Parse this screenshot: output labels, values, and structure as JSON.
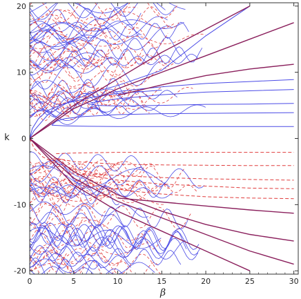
{
  "chart_data": {
    "type": "line",
    "title": "",
    "xlabel": "β",
    "ylabel": "k",
    "xlim": [
      0,
      30.5
    ],
    "ylim": [
      -20.5,
      20.5
    ],
    "x_ticks": [
      0,
      5,
      10,
      15,
      20,
      25,
      30
    ],
    "y_ticks": [
      -20,
      -10,
      0,
      10,
      20
    ],
    "grid": false,
    "legend": "none",
    "colors": {
      "blue": "#4a4ae6",
      "red": "#e03c3c",
      "purple": "#8a1f5c",
      "frame": "#333333"
    },
    "series": [
      {
        "style": "solid-blue",
        "lines": [
          {
            "x": [
              2.5,
              4,
              6,
              10,
              15,
              20,
              25,
              30
            ],
            "y": [
              2.0,
              1.9,
              1.85,
              1.8,
              1.8,
              1.8,
              1.8,
              1.8
            ]
          },
          {
            "x": [
              2.5,
              3,
              4,
              6,
              10,
              15,
              20,
              25,
              30
            ],
            "y": [
              2.0,
              2.6,
              3.0,
              3.3,
              3.6,
              3.75,
              3.8,
              3.85,
              3.9
            ]
          },
          {
            "x": [
              6.5,
              7.5,
              10,
              15,
              20,
              25,
              30
            ],
            "y": [
              5.3,
              5.0,
              4.9,
              5.0,
              5.15,
              5.2,
              5.3
            ]
          },
          {
            "x": [
              7,
              10,
              15,
              20,
              25,
              30
            ],
            "y": [
              5.4,
              6.0,
              6.6,
              7.0,
              7.2,
              7.4
            ]
          },
          {
            "x": [
              9.5,
              12,
              15,
              20,
              25,
              30
            ],
            "y": [
              7.0,
              7.4,
              7.8,
              8.3,
              8.6,
              8.9
            ]
          },
          {
            "x": [
              0,
              0.3,
              1,
              2,
              4,
              7,
              10,
              15
            ],
            "y": [
              0,
              1.5,
              3.0,
              4.2,
              5.3,
              6.2,
              6.8,
              7.3
            ]
          },
          {
            "x": [
              0,
              0.5,
              2,
              4,
              7,
              10,
              15,
              20,
              25
            ],
            "y": [
              0,
              1.2,
              3.5,
              5.2,
              6.9,
              8.0,
              10.3,
              15.5,
              20
            ]
          }
        ]
      },
      {
        "style": "dashed-red",
        "lines": [
          {
            "x": [
              3,
              5,
              10,
              15,
              20,
              25,
              30
            ],
            "y": [
              -2.3,
              -2.2,
              -2.1,
              -2.1,
              -2.1,
              -2.1,
              -2.1
            ]
          },
          {
            "x": [
              3,
              5,
              10,
              15,
              20,
              25,
              30
            ],
            "y": [
              -3.0,
              -3.5,
              -3.9,
              -4.0,
              -4.05,
              -4.1,
              -4.1
            ]
          },
          {
            "x": [
              6,
              10,
              15,
              20,
              25,
              30
            ],
            "y": [
              -5.3,
              -5.6,
              -5.9,
              -6.1,
              -6.2,
              -6.3
            ]
          },
          {
            "x": [
              6,
              10,
              15,
              20,
              25,
              30
            ],
            "y": [
              -5.4,
              -6.3,
              -6.9,
              -7.2,
              -7.5,
              -7.6
            ]
          },
          {
            "x": [
              9,
              12,
              15,
              20,
              25,
              30
            ],
            "y": [
              -7.5,
              -8.0,
              -8.4,
              -8.8,
              -9.0,
              -9.1
            ]
          },
          {
            "x": [
              0,
              0.5,
              1.5,
              3,
              5,
              8
            ],
            "y": [
              0,
              -1.5,
              -2.8,
              -3.8,
              -4.6,
              -5.4
            ]
          }
        ]
      },
      {
        "style": "purple-line",
        "lines": [
          {
            "x": [
              10,
              15,
              20,
              25,
              30
            ],
            "y": [
              6.5,
              8.1,
              9.5,
              10.5,
              11.2
            ]
          },
          {
            "x": [
              0,
              5,
              10,
              15,
              20,
              25
            ],
            "y": [
              0,
              5,
              9,
              13,
              16.5,
              20
            ]
          },
          {
            "x": [
              0,
              5,
              10,
              15,
              20,
              25,
              30
            ],
            "y": [
              0,
              4.5,
              7.5,
              10,
              12.5,
              15,
              17.5
            ]
          },
          {
            "x": [
              10,
              15,
              20,
              25,
              30
            ],
            "y": [
              -9.0,
              -9.6,
              -10.2,
              -10.8,
              -11.3
            ]
          },
          {
            "x": [
              0,
              5,
              10,
              15,
              20,
              25,
              30
            ],
            "y": [
              0,
              -5,
              -8.5,
              -11,
              -13,
              -14.5,
              -15.5
            ]
          },
          {
            "x": [
              0,
              5,
              10,
              15,
              20,
              25,
              30
            ],
            "y": [
              0,
              -6,
              -9.5,
              -12,
              -14.5,
              -17,
              -19
            ]
          },
          {
            "x": [
              0,
              5,
              10,
              15,
              20,
              25
            ],
            "y": [
              0,
              -7,
              -11,
              -14,
              -17,
              -20
            ]
          }
        ]
      }
    ]
  }
}
